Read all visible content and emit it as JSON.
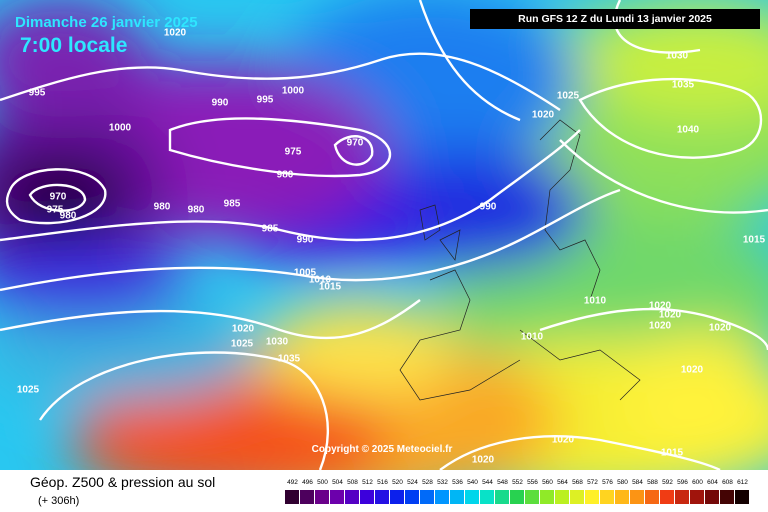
{
  "header": {
    "date": "Dimanche 26 janvier 2025",
    "time": "7:00 locale",
    "run": "Run GFS 12 Z du Lundi 13 janvier 2025"
  },
  "isobar_labels": [
    "1020",
    "995",
    "1000",
    "990",
    "995",
    "1000",
    "975",
    "970",
    "980",
    "970",
    "975",
    "980",
    "980",
    "980",
    "985",
    "985",
    "990",
    "990",
    "1025",
    "1020",
    "1030",
    "1035",
    "1040",
    "1015",
    "1005",
    "1010",
    "1015",
    "1020",
    "1025",
    "1030",
    "1035",
    "1025",
    "1010",
    "1010",
    "1020",
    "1020",
    "1020",
    "1020",
    "1020",
    "1020",
    "1020",
    "1015"
  ],
  "footer": {
    "copyright": "Copyright © 2025 Meteociel.fr",
    "field": "Géop. Z500 & pression au sol",
    "lead": "(+ 306h)"
  },
  "scale": [
    492,
    496,
    500,
    504,
    508,
    512,
    516,
    520,
    524,
    528,
    532,
    536,
    540,
    544,
    548,
    552,
    556,
    560,
    564,
    568,
    572,
    576,
    580,
    584,
    588,
    592,
    596,
    600,
    604,
    608,
    612
  ]
}
